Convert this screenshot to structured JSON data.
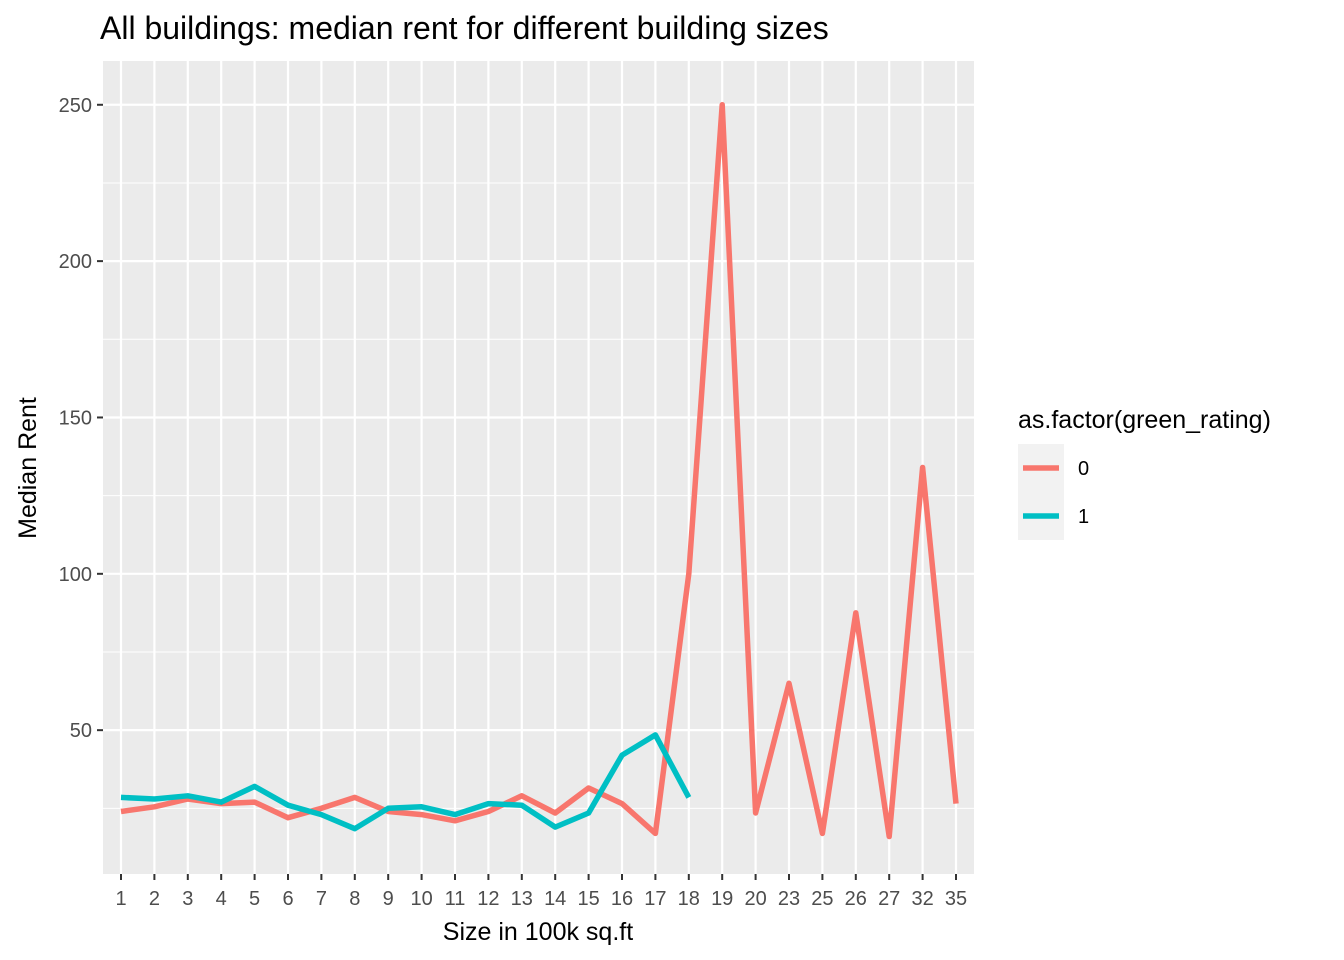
{
  "chart_data": {
    "type": "line",
    "title": "All buildings: median rent for different building sizes",
    "xlabel": "Size in 100k sq.ft",
    "ylabel": "Median Rent",
    "categories": [
      "1",
      "2",
      "3",
      "4",
      "5",
      "6",
      "7",
      "8",
      "9",
      "10",
      "11",
      "12",
      "13",
      "14",
      "15",
      "16",
      "17",
      "18",
      "19",
      "20",
      "23",
      "25",
      "26",
      "27",
      "32",
      "35"
    ],
    "y_ticks": [
      "50",
      "100",
      "150",
      "200",
      "250"
    ],
    "ylim": [
      4,
      264
    ],
    "grid": true,
    "legend": {
      "title": "as.factor(green_rating)",
      "placement": "right"
    },
    "series": [
      {
        "name": "0",
        "color": "#F8766D",
        "values": [
          24,
          25.5,
          28,
          26.5,
          27,
          22,
          25,
          28.5,
          24,
          23,
          21,
          24,
          29,
          23.5,
          31.5,
          26.5,
          17,
          100,
          250,
          23.5,
          65,
          17,
          87.5,
          16,
          134,
          26.5
        ]
      },
      {
        "name": "1",
        "color": "#00BFC4",
        "values": [
          28.5,
          28,
          29,
          27,
          32,
          26,
          23,
          18.5,
          25,
          25.5,
          23,
          26.5,
          26,
          19,
          23.5,
          42,
          48.5,
          28.5,
          null,
          null,
          null,
          null,
          null,
          null,
          null,
          null
        ]
      }
    ]
  }
}
